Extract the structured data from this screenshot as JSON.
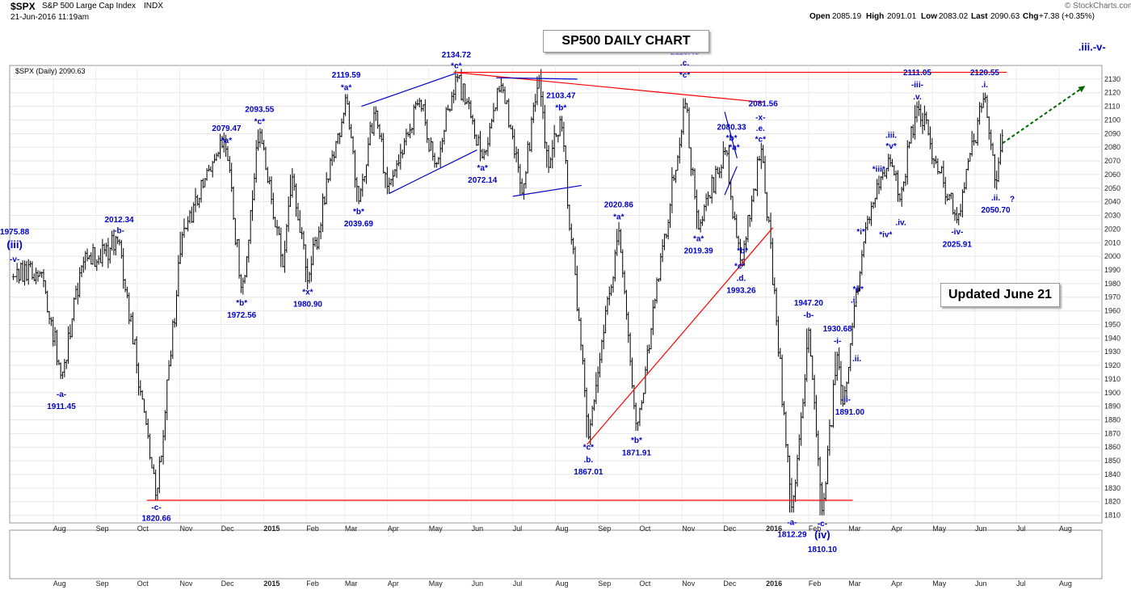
{
  "header": {
    "symbol": "$SPX",
    "name": "S&P 500 Large Cap Index",
    "exchange": "INDX",
    "datetime": "21-Jun-2016 11:19am",
    "open_label": "Open",
    "open": "2085.19",
    "high_label": "High",
    "high": "2091.01",
    "low_label": "Low",
    "low": "2083.02",
    "last_label": "Last",
    "last": "2090.63",
    "chg_label": "Chg",
    "chg": "+7.38 (+0.35%)",
    "watermark": "© StockCharts.com"
  },
  "legend": "$SPX (Daily) 2090.63",
  "title_box": "SP500 DAILY CHART",
  "updated_box": "Updated June 21",
  "colors": {
    "price": "#000000",
    "annotation": "#0000cc",
    "support_line": "#ff0000",
    "channel_line": "#0000cc",
    "projection": "#006600"
  },
  "chart_data": {
    "type": "ohlc",
    "title": "SP500 DAILY CHART",
    "ylim": [
      1805,
      2140
    ],
    "y_ticks": [
      1810,
      1820,
      1830,
      1840,
      1850,
      1860,
      1870,
      1880,
      1890,
      1900,
      1910,
      1920,
      1930,
      1940,
      1950,
      1960,
      1970,
      1980,
      1990,
      2000,
      2010,
      2020,
      2030,
      2040,
      2050,
      2060,
      2070,
      2080,
      2090,
      2100,
      2110,
      2120,
      2130
    ],
    "x_labels": [
      "Aug",
      "Sep",
      "Oct",
      "Nov",
      "Dec",
      "2015",
      "Feb",
      "Mar",
      "Apr",
      "May",
      "Jun",
      "Jul",
      "Aug",
      "Sep",
      "Oct",
      "Nov",
      "Dec",
      "2016",
      "Feb",
      "Mar",
      "Apr",
      "May",
      "Jun",
      "Jul",
      "Aug"
    ],
    "x_bold": [
      "2015",
      "2016"
    ],
    "price_path": [
      {
        "d": "2014-07-03",
        "p": 1985
      },
      {
        "d": "2014-07-24",
        "p": 1988
      },
      {
        "d": "2014-08-07",
        "p": 1910
      },
      {
        "d": "2014-08-21",
        "p": 1992
      },
      {
        "d": "2014-09-18",
        "p": 2012
      },
      {
        "d": "2014-10-15",
        "p": 1821
      },
      {
        "d": "2014-11-03",
        "p": 2018
      },
      {
        "d": "2014-11-28",
        "p": 2075
      },
      {
        "d": "2014-12-05",
        "p": 2079
      },
      {
        "d": "2014-12-16",
        "p": 1973
      },
      {
        "d": "2014-12-29",
        "p": 2093
      },
      {
        "d": "2015-01-15",
        "p": 1992
      },
      {
        "d": "2015-01-22",
        "p": 2060
      },
      {
        "d": "2015-02-02",
        "p": 1981
      },
      {
        "d": "2015-03-02",
        "p": 2119
      },
      {
        "d": "2015-03-11",
        "p": 2040
      },
      {
        "d": "2015-03-23",
        "p": 2110
      },
      {
        "d": "2015-04-01",
        "p": 2050
      },
      {
        "d": "2015-04-24",
        "p": 2115
      },
      {
        "d": "2015-05-06",
        "p": 2065
      },
      {
        "d": "2015-05-21",
        "p": 2134
      },
      {
        "d": "2015-06-09",
        "p": 2072
      },
      {
        "d": "2015-06-23",
        "p": 2127
      },
      {
        "d": "2015-07-08",
        "p": 2045
      },
      {
        "d": "2015-07-20",
        "p": 2132
      },
      {
        "d": "2015-07-27",
        "p": 2065
      },
      {
        "d": "2015-08-05",
        "p": 2103
      },
      {
        "d": "2015-08-25",
        "p": 1867
      },
      {
        "d": "2015-09-01",
        "p": 1915
      },
      {
        "d": "2015-09-16",
        "p": 2020
      },
      {
        "d": "2015-09-29",
        "p": 1872
      },
      {
        "d": "2015-11-03",
        "p": 2116
      },
      {
        "d": "2015-11-13",
        "p": 2020
      },
      {
        "d": "2015-12-02",
        "p": 2080
      },
      {
        "d": "2015-12-14",
        "p": 1993
      },
      {
        "d": "2015-12-29",
        "p": 2081
      },
      {
        "d": "2016-01-20",
        "p": 1812
      },
      {
        "d": "2016-02-01",
        "p": 1947
      },
      {
        "d": "2016-02-11",
        "p": 1810
      },
      {
        "d": "2016-02-22",
        "p": 1930
      },
      {
        "d": "2016-02-26",
        "p": 1891
      },
      {
        "d": "2016-03-14",
        "p": 2025
      },
      {
        "d": "2016-04-01",
        "p": 2070
      },
      {
        "d": "2016-04-07",
        "p": 2040
      },
      {
        "d": "2016-04-20",
        "p": 2111
      },
      {
        "d": "2016-05-19",
        "p": 2026
      },
      {
        "d": "2016-06-08",
        "p": 2120
      },
      {
        "d": "2016-06-16",
        "p": 2050
      },
      {
        "d": "2016-06-21",
        "p": 2090
      }
    ],
    "lines": [
      {
        "kind": "support",
        "color": "#ff0000",
        "from": {
          "d": "2014-10-08",
          "p": 1821
        },
        "to": {
          "d": "2016-03-04",
          "p": 1821
        }
      },
      {
        "kind": "resistance",
        "color": "#ff0000",
        "from": {
          "d": "2015-05-19",
          "p": 2135
        },
        "to": {
          "d": "2016-06-24",
          "p": 2135
        }
      },
      {
        "kind": "trend",
        "color": "#ff0000",
        "from": {
          "d": "2015-05-19",
          "p": 2135
        },
        "to": {
          "d": "2015-12-30",
          "p": 2113
        }
      },
      {
        "kind": "trend",
        "color": "#ff0000",
        "from": {
          "d": "2015-08-24",
          "p": 1862
        },
        "to": {
          "d": "2016-01-06",
          "p": 2021
        }
      },
      {
        "kind": "channel",
        "color": "#0000cc",
        "from": {
          "d": "2015-03-13",
          "p": 2110
        },
        "to": {
          "d": "2015-05-20",
          "p": 2134
        }
      },
      {
        "kind": "channel",
        "color": "#0000cc",
        "from": {
          "d": "2015-04-02",
          "p": 2046
        },
        "to": {
          "d": "2015-06-05",
          "p": 2078
        }
      },
      {
        "kind": "channel",
        "color": "#0000cc",
        "from": {
          "d": "2015-06-19",
          "p": 2131
        },
        "to": {
          "d": "2015-08-17",
          "p": 2130
        }
      },
      {
        "kind": "channel",
        "color": "#0000cc",
        "from": {
          "d": "2015-07-01",
          "p": 2044
        },
        "to": {
          "d": "2015-08-20",
          "p": 2052
        }
      },
      {
        "kind": "channel",
        "color": "#0000cc",
        "from": {
          "d": "2015-12-02",
          "p": 2106
        },
        "to": {
          "d": "2015-12-11",
          "p": 2072
        }
      },
      {
        "kind": "channel",
        "color": "#0000cc",
        "from": {
          "d": "2015-12-02",
          "p": 2045
        },
        "to": {
          "d": "2015-12-11",
          "p": 2066
        }
      }
    ],
    "projection": {
      "color": "#006600",
      "from": {
        "d": "2016-06-21",
        "p": 2083
      },
      "to": {
        "d": "2016-08-20",
        "p": 2125
      }
    },
    "annotations": [
      {
        "t": "1975.88",
        "d": "2014-07-04",
        "p": 2016,
        "big": false
      },
      {
        "t": "(iii)",
        "d": "2014-07-04",
        "p": 2006,
        "big": true
      },
      {
        "t": "-v-",
        "d": "2014-07-04",
        "p": 1996,
        "big": false
      },
      {
        "t": "2012.34",
        "d": "2014-09-18",
        "p": 2025,
        "big": false
      },
      {
        "t": "-b-",
        "d": "2014-09-18",
        "p": 2017,
        "big": false
      },
      {
        "t": "-a-",
        "d": "2014-08-07",
        "p": 1897,
        "big": false
      },
      {
        "t": "1911.45",
        "d": "2014-08-07",
        "p": 1888,
        "big": false
      },
      {
        "t": "-c-",
        "d": "2014-10-15",
        "p": 1814,
        "big": false
      },
      {
        "t": "1820.66",
        "d": "2014-10-15",
        "p": 1806,
        "big": false
      },
      {
        "t": "2079.47",
        "d": "2014-12-05",
        "p": 2092,
        "big": false
      },
      {
        "t": "*a*",
        "d": "2014-12-05",
        "p": 2083,
        "big": false
      },
      {
        "t": "2093.55",
        "d": "2014-12-29",
        "p": 2106,
        "big": false
      },
      {
        "t": "*c*",
        "d": "2014-12-29",
        "p": 2097,
        "big": false
      },
      {
        "t": "*b*",
        "d": "2014-12-16",
        "p": 1964,
        "big": false
      },
      {
        "t": "1972.56",
        "d": "2014-12-16",
        "p": 1955,
        "big": false
      },
      {
        "t": "*x*",
        "d": "2015-02-02",
        "p": 1972,
        "big": false
      },
      {
        "t": "1980.90",
        "d": "2015-02-02",
        "p": 1963,
        "big": false
      },
      {
        "t": "2119.59",
        "d": "2015-03-02",
        "p": 2131,
        "big": false
      },
      {
        "t": "*a*",
        "d": "2015-03-02",
        "p": 2122,
        "big": false
      },
      {
        "t": "*b*",
        "d": "2015-03-11",
        "p": 2031,
        "big": false
      },
      {
        "t": "2039.69",
        "d": "2015-03-11",
        "p": 2022,
        "big": false
      },
      {
        "t": "2134.72",
        "d": "2015-05-21",
        "p": 2146,
        "big": false
      },
      {
        "t": "*c*",
        "d": "2015-05-21",
        "p": 2138,
        "big": false
      },
      {
        "t": "*a*",
        "d": "2015-06-09",
        "p": 2063,
        "big": false
      },
      {
        "t": "2072.14",
        "d": "2015-06-09",
        "p": 2054,
        "big": false
      },
      {
        "t": "2103.47",
        "d": "2015-08-05",
        "p": 2116,
        "big": false
      },
      {
        "t": "*b*",
        "d": "2015-08-05",
        "p": 2107,
        "big": false
      },
      {
        "t": "*c*",
        "d": "2015-08-25",
        "p": 1858,
        "big": false
      },
      {
        "t": ".b.",
        "d": "2015-08-25",
        "p": 1849,
        "big": false
      },
      {
        "t": "1867.01",
        "d": "2015-08-25",
        "p": 1840,
        "big": false
      },
      {
        "t": "2020.86",
        "d": "2015-09-16",
        "p": 2036,
        "big": false
      },
      {
        "t": "*a*",
        "d": "2015-09-16",
        "p": 2027,
        "big": false
      },
      {
        "t": "*b*",
        "d": "2015-09-29",
        "p": 1863,
        "big": false
      },
      {
        "t": "1871.91",
        "d": "2015-09-29",
        "p": 1854,
        "big": false
      },
      {
        "t": "2116.48",
        "d": "2015-11-03",
        "p": 2148,
        "big": false
      },
      {
        "t": ".c.",
        "d": "2015-11-03",
        "p": 2140,
        "big": false
      },
      {
        "t": "*c*",
        "d": "2015-11-03",
        "p": 2131,
        "big": false
      },
      {
        "t": "*a*",
        "d": "2015-11-13",
        "p": 2011,
        "big": false
      },
      {
        "t": "2019.39",
        "d": "2015-11-13",
        "p": 2002,
        "big": false
      },
      {
        "t": "2080.33",
        "d": "2015-12-07",
        "p": 2093,
        "big": false
      },
      {
        "t": "*b*",
        "d": "2015-12-07",
        "p": 2085,
        "big": false
      },
      {
        "t": "*a*",
        "d": "2015-12-09",
        "p": 2078,
        "big": false
      },
      {
        "t": "2081.56",
        "d": "2015-12-30",
        "p": 2110,
        "big": false
      },
      {
        "t": "-x-",
        "d": "2015-12-28",
        "p": 2100,
        "big": false
      },
      {
        "t": ".e.",
        "d": "2015-12-28",
        "p": 2092,
        "big": false
      },
      {
        "t": "*c*",
        "d": "2015-12-28",
        "p": 2084,
        "big": false
      },
      {
        "t": "*b*",
        "d": "2015-12-15",
        "p": 2002,
        "big": false
      },
      {
        "t": "*c*",
        "d": "2015-12-13",
        "p": 1991,
        "big": false
      },
      {
        "t": ".d.",
        "d": "2015-12-14",
        "p": 1982,
        "big": false
      },
      {
        "t": "1993.26",
        "d": "2015-12-14",
        "p": 1973,
        "big": false
      },
      {
        "t": "-a-",
        "d": "2016-01-20",
        "p": 1803,
        "big": false
      },
      {
        "t": "1812.29",
        "d": "2016-01-20",
        "p": 1794,
        "big": false
      },
      {
        "t": "1947.20",
        "d": "2016-02-01",
        "p": 1964,
        "big": false
      },
      {
        "t": "-b-",
        "d": "2016-02-01",
        "p": 1955,
        "big": false
      },
      {
        "t": "-c-",
        "d": "2016-02-11",
        "p": 1802,
        "big": false
      },
      {
        "t": "(iv)",
        "d": "2016-02-11",
        "p": 1793,
        "big": true
      },
      {
        "t": "1810.10",
        "d": "2016-02-11",
        "p": 1783,
        "big": false
      },
      {
        "t": "1930.68",
        "d": "2016-02-22",
        "p": 1945,
        "big": false
      },
      {
        "t": "-i-",
        "d": "2016-02-22",
        "p": 1936,
        "big": false
      },
      {
        "t": "-ii-",
        "d": "2016-02-28",
        "p": 1893,
        "big": false
      },
      {
        "t": "1891.00",
        "d": "2016-03-02",
        "p": 1884,
        "big": false
      },
      {
        "t": ".i.",
        "d": "2016-03-05",
        "p": 1966,
        "big": false
      },
      {
        "t": ".ii.",
        "d": "2016-03-07",
        "p": 1923,
        "big": false
      },
      {
        "t": "*i*",
        "d": "2016-03-10",
        "p": 2016,
        "big": false
      },
      {
        "t": "*ii*",
        "d": "2016-03-08",
        "p": 1974,
        "big": false
      },
      {
        "t": "*iii*",
        "d": "2016-03-23",
        "p": 2062,
        "big": false
      },
      {
        "t": ".iii.",
        "d": "2016-04-01",
        "p": 2087,
        "big": false
      },
      {
        "t": "*v*",
        "d": "2016-04-01",
        "p": 2079,
        "big": false
      },
      {
        "t": "*iv*",
        "d": "2016-03-28",
        "p": 2014,
        "big": false
      },
      {
        "t": ".iv.",
        "d": "2016-04-08",
        "p": 2023,
        "big": false
      },
      {
        "t": "2111.05",
        "d": "2016-04-20",
        "p": 2133,
        "big": false
      },
      {
        "t": "-iii-",
        "d": "2016-04-20",
        "p": 2124,
        "big": false
      },
      {
        "t": ".v.",
        "d": "2016-04-20",
        "p": 2115,
        "big": false
      },
      {
        "t": "-iv-",
        "d": "2016-05-19",
        "p": 2016,
        "big": false
      },
      {
        "t": "2025.91",
        "d": "2016-05-19",
        "p": 2007,
        "big": false
      },
      {
        "t": "2120.55",
        "d": "2016-06-08",
        "p": 2133,
        "big": false
      },
      {
        "t": ".i.",
        "d": "2016-06-08",
        "p": 2124,
        "big": false
      },
      {
        "t": ".ii.",
        "d": "2016-06-16",
        "p": 2041,
        "big": false
      },
      {
        "t": "2050.70",
        "d": "2016-06-16",
        "p": 2032,
        "big": false
      },
      {
        "t": "?",
        "d": "2016-06-28",
        "p": 2040,
        "big": false
      },
      {
        "t": ".iii.-v-",
        "d": "2016-08-25",
        "p": 2151,
        "big": true
      }
    ]
  }
}
